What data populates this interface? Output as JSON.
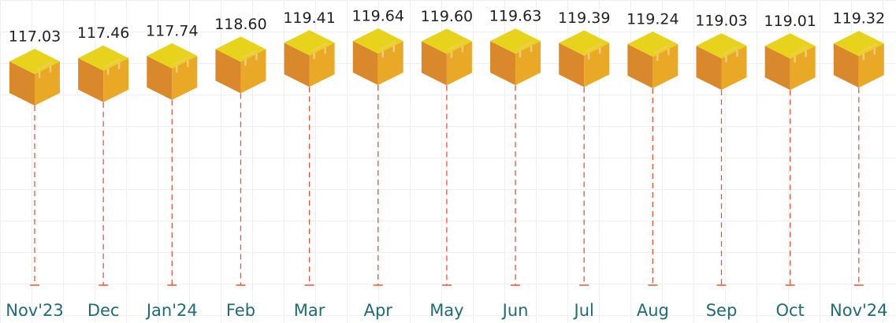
{
  "chart_data": {
    "type": "pictogram",
    "categories": [
      "Nov'23",
      "Dec",
      "Jan'24",
      "Feb",
      "Mar",
      "Apr",
      "May",
      "Jun",
      "Jul",
      "Aug",
      "Sep",
      "Oct",
      "Nov'24"
    ],
    "values": [
      117.03,
      117.46,
      117.74,
      118.6,
      119.41,
      119.64,
      119.6,
      119.63,
      119.39,
      119.24,
      119.03,
      119.01,
      119.32
    ],
    "value_labels": [
      "117.03",
      "117.46",
      "117.74",
      "118.60",
      "119.41",
      "119.64",
      "119.60",
      "119.63",
      "119.39",
      "119.24",
      "119.03",
      "119.01",
      "119.32"
    ],
    "colors": {
      "top": "#e8d31c",
      "left": "#d9892b",
      "right": "#e9a826",
      "tape": "#f3c97a",
      "stem": "#e8553a"
    }
  }
}
